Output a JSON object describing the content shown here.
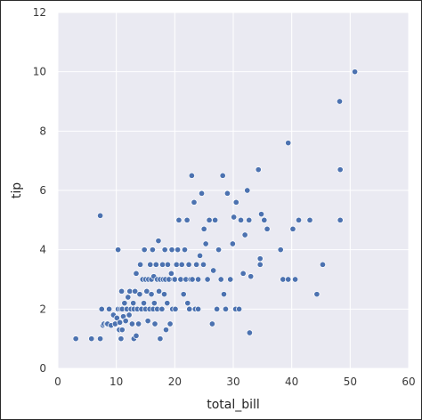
{
  "chart_data": {
    "type": "scatter",
    "title": "",
    "xlabel": "total_bill",
    "ylabel": "tip",
    "xlim": [
      0,
      60
    ],
    "ylim": [
      0,
      12
    ],
    "x_ticks": [
      0,
      10,
      20,
      30,
      40,
      50,
      60
    ],
    "y_ticks": [
      0,
      2,
      4,
      6,
      8,
      10,
      12
    ],
    "grid": true,
    "background_color": "#eaeaf2",
    "grid_color": "#ffffff",
    "point_color": "#4c72b0",
    "point_edge_color": "#ffffff",
    "points": [
      [
        3.07,
        1.0
      ],
      [
        5.75,
        1.0
      ],
      [
        7.25,
        1.0
      ],
      [
        7.25,
        5.15
      ],
      [
        7.5,
        2.0
      ],
      [
        7.7,
        1.45
      ],
      [
        7.9,
        1.5
      ],
      [
        8.35,
        1.5
      ],
      [
        8.5,
        1.5
      ],
      [
        8.77,
        2.0
      ],
      [
        9.1,
        1.45
      ],
      [
        9.5,
        1.8
      ],
      [
        9.8,
        1.5
      ],
      [
        10.1,
        1.7
      ],
      [
        10.3,
        2.0
      ],
      [
        10.5,
        1.3
      ],
      [
        10.6,
        1.55
      ],
      [
        10.7,
        2.0
      ],
      [
        10.8,
        1.0
      ],
      [
        10.3,
        4.0
      ],
      [
        10.9,
        2.6
      ],
      [
        11.0,
        2.0
      ],
      [
        11.0,
        1.3
      ],
      [
        11.2,
        1.75
      ],
      [
        11.4,
        2.2
      ],
      [
        11.6,
        1.6
      ],
      [
        11.8,
        2.0
      ],
      [
        12.0,
        2.4
      ],
      [
        12.2,
        1.8
      ],
      [
        12.3,
        2.6
      ],
      [
        12.5,
        2.0
      ],
      [
        12.7,
        1.5
      ],
      [
        12.9,
        2.2
      ],
      [
        13.0,
        1.0
      ],
      [
        13.0,
        2.0
      ],
      [
        13.2,
        2.6
      ],
      [
        13.4,
        1.1
      ],
      [
        13.4,
        3.2
      ],
      [
        13.6,
        2.0
      ],
      [
        13.8,
        1.5
      ],
      [
        14.0,
        2.5
      ],
      [
        14.1,
        3.5
      ],
      [
        14.3,
        2.0
      ],
      [
        14.5,
        3.0
      ],
      [
        14.7,
        2.2
      ],
      [
        14.8,
        4.0
      ],
      [
        15.0,
        2.0
      ],
      [
        15.0,
        3.0
      ],
      [
        15.2,
        2.6
      ],
      [
        15.4,
        1.6
      ],
      [
        15.5,
        3.0
      ],
      [
        15.7,
        2.0
      ],
      [
        15.8,
        3.5
      ],
      [
        16.0,
        2.5
      ],
      [
        16.0,
        3.0
      ],
      [
        16.2,
        4.0
      ],
      [
        16.3,
        2.0
      ],
      [
        16.4,
        3.1
      ],
      [
        16.5,
        2.2
      ],
      [
        16.6,
        1.5
      ],
      [
        16.8,
        3.5
      ],
      [
        17.0,
        2.0
      ],
      [
        17.0,
        3.0
      ],
      [
        17.2,
        4.3
      ],
      [
        17.3,
        2.6
      ],
      [
        17.5,
        3.0
      ],
      [
        17.5,
        1.0
      ],
      [
        17.8,
        2.0
      ],
      [
        17.9,
        3.5
      ],
      [
        18.0,
        3.0
      ],
      [
        18.2,
        2.5
      ],
      [
        18.3,
        4.0
      ],
      [
        18.4,
        3.0
      ],
      [
        18.5,
        1.3
      ],
      [
        18.7,
        2.2
      ],
      [
        18.8,
        3.5
      ],
      [
        19.0,
        3.0
      ],
      [
        19.2,
        1.5
      ],
      [
        19.4,
        3.2
      ],
      [
        19.5,
        4.0
      ],
      [
        19.6,
        2.0
      ],
      [
        19.8,
        3.0
      ],
      [
        20.0,
        3.0
      ],
      [
        20.1,
        2.0
      ],
      [
        20.3,
        3.5
      ],
      [
        20.5,
        4.0
      ],
      [
        20.7,
        5.0
      ],
      [
        20.9,
        3.0
      ],
      [
        21.0,
        3.0
      ],
      [
        21.2,
        3.5
      ],
      [
        21.5,
        2.5
      ],
      [
        21.7,
        4.0
      ],
      [
        21.9,
        3.0
      ],
      [
        22.1,
        5.0
      ],
      [
        22.2,
        2.2
      ],
      [
        22.4,
        3.5
      ],
      [
        22.5,
        2.0
      ],
      [
        22.7,
        3.0
      ],
      [
        22.9,
        6.5
      ],
      [
        23.0,
        3.0
      ],
      [
        23.3,
        5.6
      ],
      [
        23.5,
        2.0
      ],
      [
        23.7,
        3.5
      ],
      [
        24.0,
        2.0
      ],
      [
        24.0,
        3.0
      ],
      [
        24.3,
        3.8
      ],
      [
        24.6,
        5.9
      ],
      [
        24.9,
        3.5
      ],
      [
        25.0,
        4.7
      ],
      [
        25.3,
        4.2
      ],
      [
        25.6,
        3.0
      ],
      [
        25.9,
        5.0
      ],
      [
        26.4,
        1.5
      ],
      [
        26.6,
        3.3
      ],
      [
        26.9,
        5.0
      ],
      [
        27.2,
        2.0
      ],
      [
        27.5,
        4.0
      ],
      [
        27.9,
        3.0
      ],
      [
        28.2,
        6.5
      ],
      [
        28.4,
        2.5
      ],
      [
        28.7,
        2.0
      ],
      [
        29.0,
        5.9
      ],
      [
        29.5,
        3.0
      ],
      [
        29.9,
        4.2
      ],
      [
        30.1,
        5.1
      ],
      [
        30.4,
        2.0
      ],
      [
        30.5,
        5.6
      ],
      [
        31.0,
        2.0
      ],
      [
        31.3,
        5.0
      ],
      [
        31.7,
        3.2
      ],
      [
        32.0,
        4.5
      ],
      [
        32.4,
        6.0
      ],
      [
        32.7,
        5.0
      ],
      [
        32.8,
        1.2
      ],
      [
        33.0,
        3.1
      ],
      [
        34.3,
        6.7
      ],
      [
        34.6,
        3.7
      ],
      [
        34.6,
        3.5
      ],
      [
        34.8,
        5.2
      ],
      [
        35.3,
        5.0
      ],
      [
        35.8,
        4.7
      ],
      [
        38.1,
        4.0
      ],
      [
        38.5,
        3.0
      ],
      [
        39.4,
        7.6
      ],
      [
        39.4,
        3.0
      ],
      [
        40.2,
        4.7
      ],
      [
        40.6,
        3.0
      ],
      [
        41.2,
        5.0
      ],
      [
        43.1,
        5.0
      ],
      [
        44.3,
        2.5
      ],
      [
        45.3,
        3.5
      ],
      [
        48.2,
        9.0
      ],
      [
        48.3,
        6.7
      ],
      [
        48.3,
        5.0
      ],
      [
        50.8,
        10.0
      ]
    ]
  }
}
